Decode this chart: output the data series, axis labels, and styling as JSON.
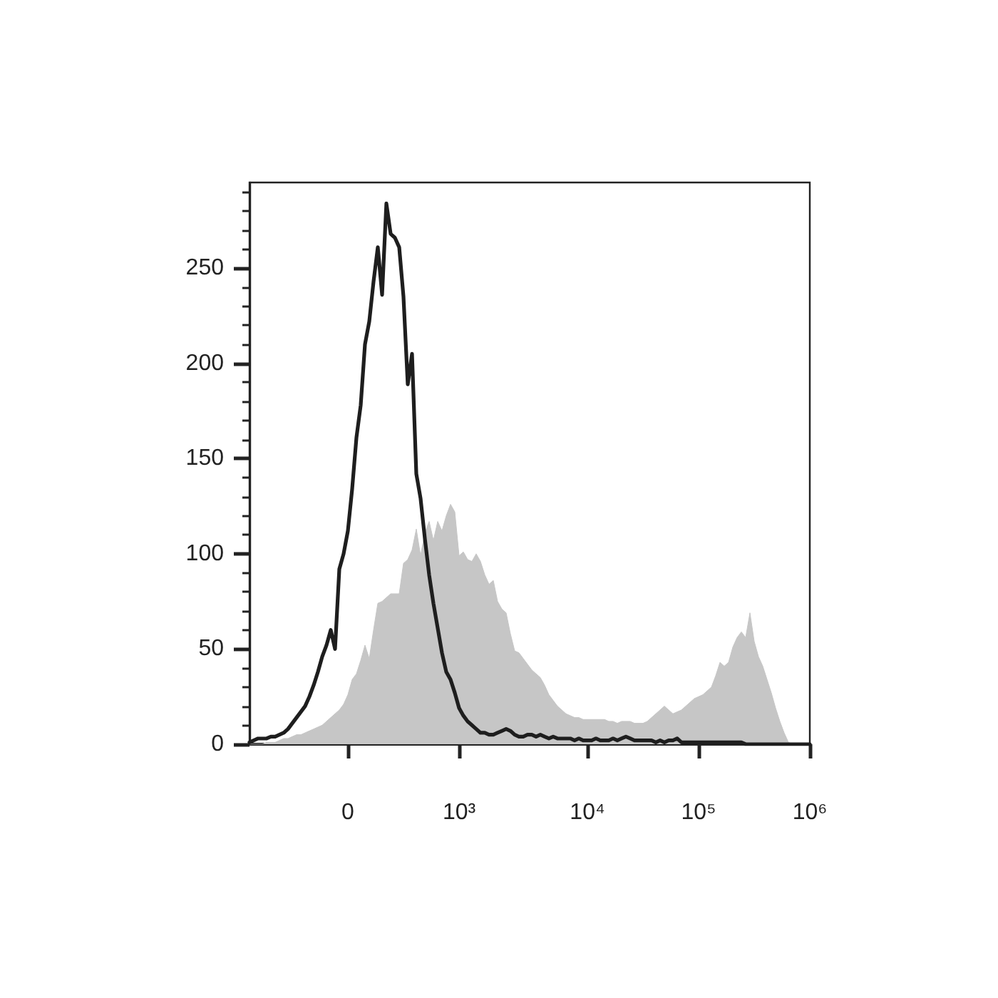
{
  "chart_data": {
    "type": "line",
    "categories": [
      null,
      null,
      null,
      null,
      null,
      null,
      null,
      null,
      null,
      null,
      null,
      null,
      null,
      null,
      null,
      null,
      null,
      null,
      null,
      null,
      null,
      null,
      null,
      "0",
      null,
      null,
      null,
      null,
      null,
      null,
      null,
      null,
      null,
      null,
      null,
      null,
      null,
      null,
      null,
      null,
      null,
      null,
      null,
      null,
      null,
      null,
      null,
      null,
      null,
      "10³",
      null,
      null,
      null,
      null,
      null,
      null,
      null,
      null,
      null,
      null,
      null,
      null,
      null,
      null,
      null,
      null,
      null,
      null,
      null,
      null,
      null,
      null,
      null,
      null,
      null,
      null,
      null,
      null,
      null,
      "10⁴",
      null,
      null,
      null,
      null,
      null,
      null,
      null,
      null,
      null,
      null,
      null,
      null,
      null,
      null,
      null,
      null,
      null,
      null,
      null,
      null,
      null,
      null,
      null,
      null,
      null,
      "10⁵",
      null,
      null,
      null,
      null,
      null,
      null,
      null,
      null,
      null,
      null,
      null,
      null,
      null,
      null,
      null,
      null,
      null,
      null,
      null,
      null,
      null,
      null,
      null,
      null,
      null,
      "10⁶"
    ],
    "ylim": [
      0,
      295
    ],
    "yticks": [
      0,
      {
        "value": 10,
        "label": null
      },
      {
        "value": 20,
        "label": null
      },
      {
        "value": 30,
        "label": null
      },
      {
        "value": 40,
        "label": null
      },
      50,
      {
        "value": 60,
        "label": null
      },
      {
        "value": 70,
        "label": null
      },
      {
        "value": 80,
        "label": null
      },
      {
        "value": 90,
        "label": null
      },
      100,
      {
        "value": 110,
        "label": null
      },
      {
        "value": 120,
        "label": null
      },
      {
        "value": 130,
        "label": null
      },
      {
        "value": 140,
        "label": null
      },
      150,
      {
        "value": 160,
        "label": null
      },
      {
        "value": 170,
        "label": null
      },
      {
        "value": 180,
        "label": null
      },
      {
        "value": 190,
        "label": null
      },
      200,
      {
        "value": 210,
        "label": null
      },
      {
        "value": 220,
        "label": null
      },
      {
        "value": 230,
        "label": null
      },
      {
        "value": 240,
        "label": null
      },
      250,
      {
        "value": 260,
        "label": null
      },
      {
        "value": 270,
        "label": null
      },
      {
        "value": 280,
        "label": null
      },
      {
        "value": 290,
        "label": null
      }
    ],
    "series": [
      {
        "type": "area",
        "color": "#c6c6c6",
        "values": [
          0,
          0,
          0,
          0,
          1,
          1,
          1,
          2,
          3,
          3,
          4,
          5,
          5,
          6,
          7,
          8,
          9,
          10,
          12,
          14,
          16,
          18,
          21,
          26,
          34,
          37,
          44,
          52,
          45,
          60,
          74,
          75,
          77,
          79,
          79,
          79,
          95,
          97,
          102,
          113,
          99,
          111,
          117,
          107,
          117,
          112,
          120,
          126,
          122,
          99,
          101,
          97,
          96,
          100,
          96,
          89,
          84,
          86,
          75,
          71,
          69,
          58,
          49,
          48,
          45,
          42,
          39,
          37,
          35,
          31,
          26,
          23,
          20,
          18,
          16,
          15,
          14,
          14,
          13,
          13,
          13,
          13,
          13,
          13,
          12,
          12,
          11,
          12,
          12,
          12,
          11,
          11,
          11,
          12,
          14,
          16,
          18,
          20,
          18,
          16,
          17,
          18,
          20,
          22,
          24,
          25,
          26,
          28,
          30,
          36,
          43,
          41,
          43,
          51,
          56,
          59,
          56,
          69,
          54,
          46,
          41,
          34,
          27,
          19,
          12,
          6,
          1,
          0,
          0,
          0,
          0,
          0
        ]
      },
      {
        "color": "#1e1e1e",
        "values": [
          1,
          2,
          3,
          3,
          3,
          4,
          4,
          5,
          6,
          8,
          11,
          14,
          17,
          20,
          25,
          31,
          38,
          46,
          52,
          60,
          50,
          92,
          100,
          112,
          134,
          161,
          178,
          210,
          222,
          243,
          261,
          236,
          284,
          268,
          266,
          261,
          235,
          189,
          205,
          142,
          129,
          108,
          89,
          74,
          61,
          48,
          38,
          34,
          27,
          19,
          15,
          12,
          10,
          8,
          6,
          6,
          5,
          5,
          6,
          7,
          8,
          7,
          5,
          4,
          4,
          5,
          5,
          4,
          5,
          4,
          3,
          4,
          3,
          3,
          3,
          3,
          2,
          3,
          2,
          2,
          2,
          3,
          2,
          2,
          2,
          3,
          2,
          3,
          4,
          3,
          2,
          2,
          2,
          2,
          2,
          1,
          2,
          1,
          2,
          2,
          3,
          1,
          1,
          1,
          1,
          1,
          1,
          1,
          1,
          1,
          1,
          1,
          1,
          1,
          1,
          1,
          0,
          0,
          0,
          0,
          0,
          0,
          0,
          0,
          0,
          0,
          0,
          0,
          0,
          0,
          0,
          0
        ]
      }
    ]
  }
}
